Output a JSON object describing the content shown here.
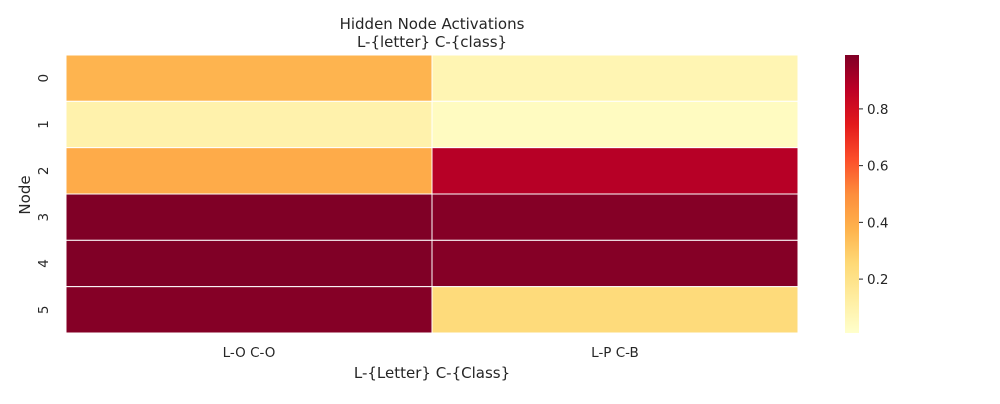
{
  "chart_data": {
    "type": "heatmap",
    "title": "Hidden Node Activations",
    "subtitle": "L-{letter} C-{class}",
    "xlabel": "L-{Letter} C-{Class}",
    "ylabel": "Node",
    "x_categories": [
      "L-O C-O",
      "L-P C-B"
    ],
    "y_categories": [
      "0",
      "1",
      "2",
      "3",
      "4",
      "5"
    ],
    "values": [
      [
        0.37,
        0.08
      ],
      [
        0.1,
        0.04
      ],
      [
        0.4,
        0.88
      ],
      [
        0.99,
        0.98
      ],
      [
        0.99,
        0.98
      ],
      [
        0.98,
        0.24
      ]
    ],
    "colorbar": {
      "colormap": "YlOrRd",
      "range": [
        0.01,
        0.99
      ],
      "ticks": [
        "0.2",
        "0.4",
        "0.6",
        "0.8"
      ],
      "tick_values": [
        0.2,
        0.4,
        0.6,
        0.8
      ]
    },
    "grid": false
  }
}
